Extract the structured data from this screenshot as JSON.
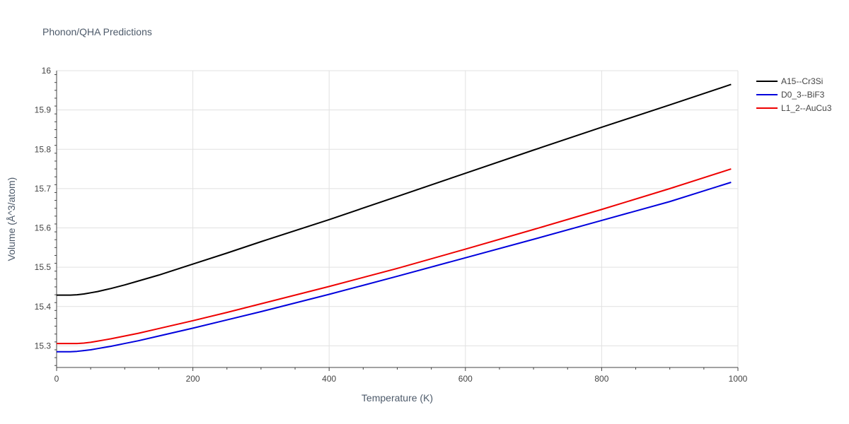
{
  "chart_data": {
    "type": "line",
    "title": "Phonon/QHA Predictions",
    "xlabel": "Temperature (K)",
    "ylabel": "Volume (Å^3/atom)",
    "xlim": [
      0,
      1000
    ],
    "ylim": [
      15.245,
      16.0
    ],
    "x_ticks": [
      0,
      200,
      400,
      600,
      800,
      1000
    ],
    "y_ticks": [
      15.3,
      15.4,
      15.5,
      15.6,
      15.7,
      15.8,
      15.9,
      16
    ],
    "x_tick_labels": [
      "0",
      "200",
      "400",
      "600",
      "800",
      "1000"
    ],
    "y_tick_labels": [
      "15.3",
      "15.4",
      "15.5",
      "15.6",
      "15.7",
      "15.8",
      "15.9",
      "16"
    ],
    "grid": true,
    "legend": "top-right",
    "series": [
      {
        "name": "A15--Cr3Si",
        "color": "#000000",
        "x": [
          0,
          10,
          20,
          30,
          40,
          50,
          60,
          70,
          80,
          100,
          120,
          150,
          200,
          250,
          300,
          400,
          500,
          600,
          700,
          800,
          900,
          990
        ],
        "y": [
          15.429,
          15.429,
          15.429,
          15.43,
          15.432,
          15.435,
          15.438,
          15.442,
          15.446,
          15.455,
          15.465,
          15.48,
          15.508,
          15.536,
          15.565,
          15.621,
          15.68,
          15.739,
          15.798,
          15.856,
          15.913,
          15.965
        ]
      },
      {
        "name": "D0_3--BiF3",
        "color": "#0000dd",
        "x": [
          0,
          10,
          20,
          30,
          40,
          50,
          60,
          70,
          80,
          100,
          120,
          150,
          200,
          250,
          300,
          400,
          500,
          600,
          700,
          800,
          900,
          990
        ],
        "y": [
          15.285,
          15.285,
          15.285,
          15.286,
          15.288,
          15.29,
          15.293,
          15.296,
          15.299,
          15.306,
          15.313,
          15.325,
          15.345,
          15.366,
          15.387,
          15.431,
          15.477,
          15.524,
          15.571,
          15.619,
          15.667,
          15.716
        ]
      },
      {
        "name": "L1_2--AuCu3",
        "color": "#ee0000",
        "x": [
          0,
          10,
          20,
          30,
          40,
          50,
          60,
          70,
          80,
          100,
          120,
          150,
          200,
          250,
          300,
          400,
          500,
          600,
          700,
          800,
          900,
          990
        ],
        "y": [
          15.306,
          15.306,
          15.306,
          15.306,
          15.307,
          15.309,
          15.312,
          15.315,
          15.318,
          15.325,
          15.332,
          15.344,
          15.364,
          15.385,
          15.407,
          15.451,
          15.497,
          15.546,
          15.596,
          15.647,
          15.7,
          15.75
        ]
      }
    ]
  }
}
